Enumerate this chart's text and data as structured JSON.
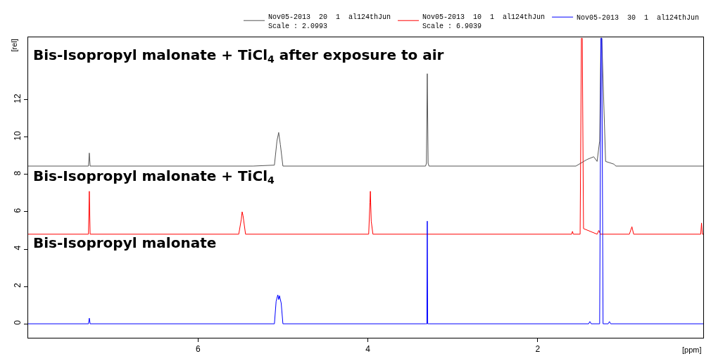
{
  "chart_data": {
    "type": "line",
    "xlabel": "[ppm]",
    "ylabel": "[rel]",
    "xlim": [
      8.0,
      0.05
    ],
    "xticks": [
      6,
      4,
      2
    ],
    "ylim": [
      -0.75,
      15.35
    ],
    "yticks": [
      0,
      2,
      4,
      6,
      8,
      10,
      12
    ],
    "legend": "top",
    "marker": "none",
    "line_style": "solid",
    "annotations": [
      "Bis-Isopropyl malonate + TiCl$_{4}$ after exposure to air",
      "Bis-Isopropyl malonate + TiCl$_{4}$",
      "Bis-Isopropyl malonate"
    ],
    "series": [
      {
        "name": "Nov05-2013  20  1  al124thJun\nScale : 2.0993",
        "color": "#555555",
        "x": [
          8.0,
          7.29,
          7.28,
          7.27,
          5.35,
          5.1,
          5.07,
          5.05,
          5.03,
          5.0,
          3.32,
          3.31,
          3.3,
          3.29,
          3.28,
          1.55,
          1.42,
          1.34,
          1.3,
          1.27,
          1.255,
          1.25,
          1.245,
          1.2,
          1.1,
          1.08,
          0.05
        ],
        "values": [
          8.45,
          8.45,
          9.15,
          8.45,
          8.45,
          8.5,
          9.8,
          10.25,
          9.6,
          8.45,
          8.45,
          8.6,
          13.4,
          8.6,
          8.45,
          8.45,
          8.8,
          8.95,
          8.7,
          9.8,
          15.3,
          15.3,
          15.3,
          8.7,
          8.55,
          8.45,
          8.45
        ]
      },
      {
        "name": "Nov05-2013  10  1  al124thJun\nScale : 6.9039",
        "color": "#ff0000",
        "x": [
          8.0,
          7.29,
          7.28,
          7.27,
          5.52,
          5.49,
          5.48,
          5.47,
          5.44,
          3.99,
          3.975,
          3.97,
          3.96,
          3.94,
          1.6,
          1.59,
          1.58,
          1.5,
          1.485,
          1.48,
          1.475,
          1.46,
          1.3,
          1.28,
          1.26,
          0.92,
          0.89,
          0.87,
          0.08,
          0.07,
          0.06,
          0.05
        ],
        "values": [
          4.8,
          4.8,
          7.1,
          4.8,
          4.8,
          5.6,
          6.0,
          5.8,
          4.8,
          4.8,
          6.5,
          7.1,
          5.5,
          4.8,
          4.8,
          4.95,
          4.8,
          4.8,
          15.3,
          15.3,
          15.3,
          5.1,
          4.8,
          5.0,
          4.8,
          4.8,
          5.2,
          4.8,
          4.8,
          5.4,
          4.8,
          4.8
        ]
      },
      {
        "name": "Nov05-2013  30  1  al124thJun",
        "color": "#0000ff",
        "x": [
          8.0,
          7.29,
          7.28,
          7.27,
          5.1,
          5.08,
          5.06,
          5.05,
          5.04,
          5.02,
          5.0,
          3.32,
          3.305,
          3.3,
          3.295,
          3.28,
          1.4,
          1.385,
          1.37,
          1.27,
          1.255,
          1.25,
          1.245,
          1.23,
          1.17,
          1.155,
          1.14,
          0.05
        ],
        "values": [
          0,
          0,
          0.3,
          0,
          0,
          1.2,
          1.55,
          1.3,
          1.5,
          1.1,
          0,
          0,
          0,
          5.5,
          0,
          0,
          0,
          0.12,
          0,
          0,
          15.3,
          15.3,
          15.3,
          0,
          0,
          0.12,
          0,
          0
        ]
      }
    ]
  }
}
